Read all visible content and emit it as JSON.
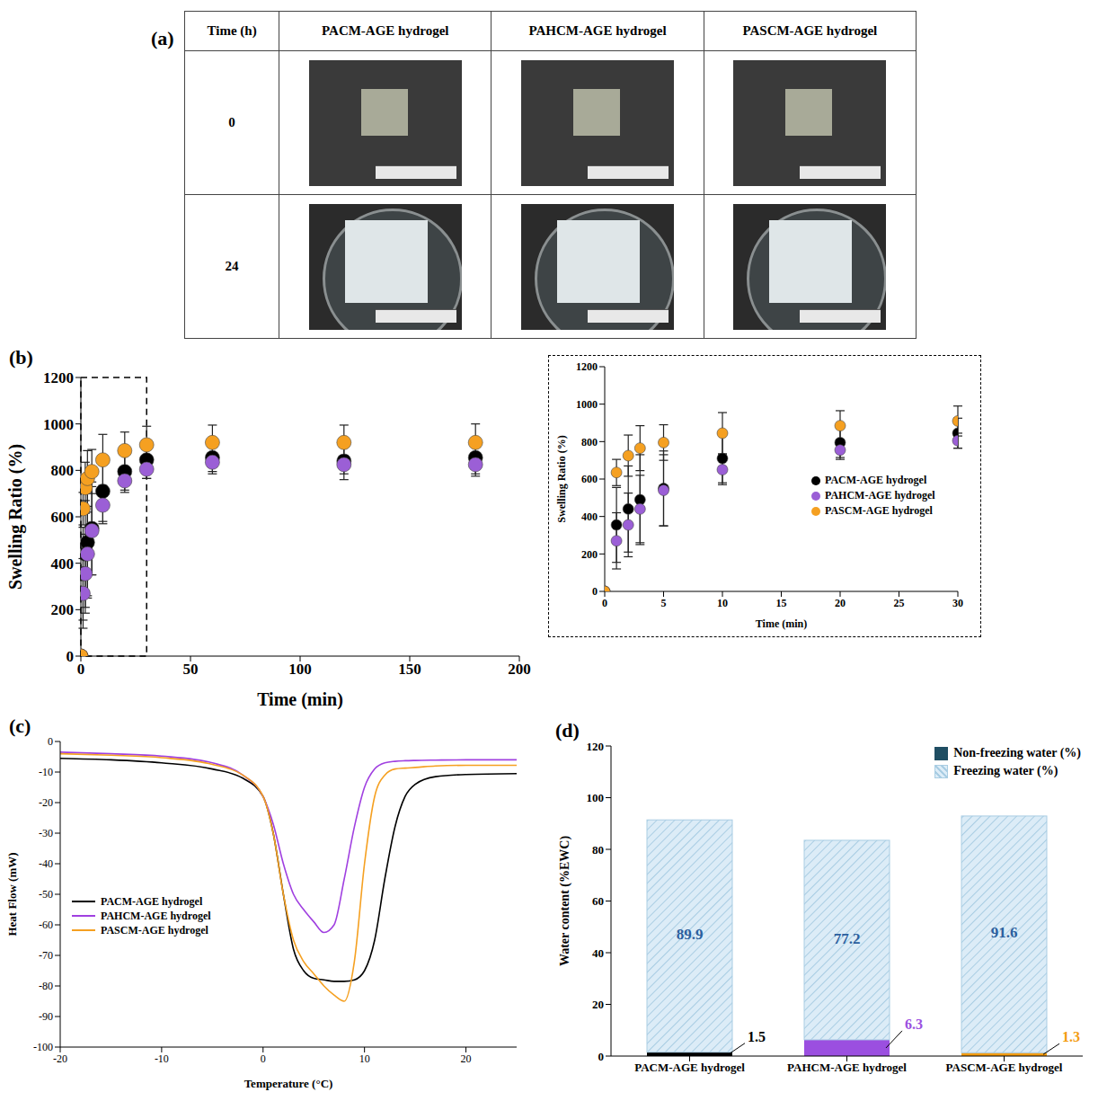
{
  "table": {
    "panel": "(a)",
    "header": [
      "Time (h)",
      "PACM-AGE hydrogel",
      "PAHCM-AGE hydrogel",
      "PASCM-AGE hydrogel"
    ],
    "rows": [
      [
        "0"
      ],
      [
        "24"
      ]
    ]
  },
  "chart_data": [
    {
      "panel": "(b)",
      "type": "scatter",
      "marker": "circle",
      "xlabel": "Time (min)",
      "ylabel": "Swelling Ratio (%)",
      "xlim": [
        0,
        200
      ],
      "xticks": [
        0,
        50,
        100,
        150,
        200
      ],
      "ylim": [
        0,
        1200
      ],
      "yticks": [
        0,
        200,
        400,
        600,
        800,
        1000,
        1200
      ],
      "x": [
        0,
        1,
        2,
        3,
        5,
        10,
        20,
        30,
        60,
        120,
        180
      ],
      "series": [
        {
          "name": "PACM-AGE hydrogel",
          "color": "#000000",
          "values": [
            0,
            355,
            440,
            490,
            550,
            710,
            795,
            845,
            855,
            840,
            855
          ],
          "errors": [
            0,
            200,
            230,
            240,
            200,
            130,
            80,
            80,
            70,
            80,
            80
          ]
        },
        {
          "name": "PAHCM-AGE hydrogel",
          "color": "#9b5fd6",
          "values": [
            0,
            270,
            355,
            440,
            540,
            650,
            755,
            805,
            835,
            825,
            825
          ],
          "errors": [
            0,
            150,
            170,
            180,
            190,
            80,
            50,
            40,
            40,
            40,
            40
          ]
        },
        {
          "name": "PASCM-AGE hydrogel",
          "color": "#f5a021",
          "values": [
            0,
            635,
            725,
            765,
            795,
            845,
            885,
            910,
            920,
            920,
            920
          ],
          "errors": [
            0,
            70,
            110,
            120,
            95,
            110,
            80,
            80,
            75,
            75,
            80
          ]
        }
      ]
    },
    {
      "type": "scatter",
      "marker": "circle",
      "xlabel": "Time (min)",
      "ylabel": "Swelling Ratio (%)",
      "xlim": [
        0,
        30
      ],
      "xticks": [
        0,
        5,
        10,
        15,
        20,
        25,
        30
      ],
      "ylim": [
        0,
        1200
      ],
      "yticks": [
        0,
        200,
        400,
        600,
        800,
        1000,
        1200
      ],
      "legend": "right",
      "x": [
        0,
        1,
        2,
        3,
        5,
        10,
        20,
        30
      ],
      "series": [
        {
          "name": "PACM-AGE hydrogel",
          "color": "#000000",
          "values": [
            0,
            355,
            440,
            490,
            550,
            710,
            795,
            845
          ],
          "errors": [
            0,
            200,
            230,
            240,
            200,
            130,
            80,
            80
          ]
        },
        {
          "name": "PAHCM-AGE hydrogel",
          "color": "#9b5fd6",
          "values": [
            0,
            270,
            355,
            440,
            540,
            650,
            755,
            805
          ],
          "errors": [
            0,
            150,
            170,
            180,
            190,
            80,
            50,
            40
          ]
        },
        {
          "name": "PASCM-AGE hydrogel",
          "color": "#f5a021",
          "values": [
            0,
            635,
            725,
            765,
            795,
            845,
            885,
            910
          ],
          "errors": [
            0,
            70,
            110,
            120,
            95,
            110,
            80,
            80
          ]
        }
      ]
    },
    {
      "panel": "(c)",
      "type": "line",
      "xlabel": "Temperature (°C)",
      "ylabel": "Heat Flow (mW)",
      "xlim": [
        -20,
        25
      ],
      "xticks": [
        -20,
        -10,
        0,
        10,
        20
      ],
      "ylim": [
        -100,
        0
      ],
      "yticks": [
        -100,
        -90,
        -80,
        -70,
        -60,
        -50,
        -40,
        -30,
        -20,
        -10,
        0
      ],
      "legend": "upper left",
      "x": [
        -20,
        -15,
        -10,
        -5,
        -2,
        0,
        1,
        2,
        3,
        4,
        5,
        6,
        7,
        8,
        9,
        10,
        11,
        12,
        13,
        14,
        15,
        17,
        20,
        25
      ],
      "series": [
        {
          "name": "PACM-AGE hydrogel",
          "color": "#000000",
          "values": [
            -5.5,
            -6,
            -7,
            -9,
            -12,
            -18,
            -30,
            -50,
            -68,
            -75,
            -77.5,
            -78,
            -78.5,
            -78.5,
            -78,
            -75,
            -65,
            -45,
            -28,
            -18,
            -14,
            -11.5,
            -10.8,
            -10.5
          ]
        },
        {
          "name": "PAHCM-AGE hydrogel",
          "color": "#a040e0",
          "values": [
            -3.5,
            -4,
            -4.8,
            -7,
            -11,
            -18,
            -27,
            -40,
            -50,
            -55,
            -59,
            -62.5,
            -60,
            -45,
            -28,
            -15,
            -9,
            -7,
            -6.5,
            -6.3,
            -6.2,
            -6.1,
            -6,
            -6
          ]
        },
        {
          "name": "PASCM-AGE hydrogel",
          "color": "#f5a021",
          "values": [
            -4,
            -4.5,
            -5.3,
            -7.5,
            -11,
            -18,
            -30,
            -50,
            -65,
            -72,
            -76,
            -80,
            -83,
            -85,
            -72,
            -40,
            -18,
            -11,
            -9,
            -8.7,
            -8.5,
            -8,
            -7.8,
            -7.8
          ]
        }
      ]
    },
    {
      "panel": "(d)",
      "type": "bar",
      "stacked": true,
      "data_labels": true,
      "legend": "upper right",
      "ylabel": "Water content (%EWC)",
      "categories": [
        "PACM-AGE hydrogel",
        "PAHCM-AGE hydrogel",
        "PASCM-AGE hydrogel"
      ],
      "ylim": [
        0,
        120
      ],
      "yticks": [
        0,
        20,
        40,
        60,
        80,
        100,
        120
      ],
      "series": [
        {
          "name": "Non-freezing water (%)",
          "color": "#1f4e63",
          "colors": [
            "#000000",
            "#9b4fe0",
            "#f39c12"
          ],
          "values": [
            1.5,
            6.3,
            1.3
          ]
        },
        {
          "name": "Freezing water (%)",
          "color": "#dcecf7",
          "values": [
            89.9,
            77.2,
            91.6
          ]
        }
      ]
    }
  ]
}
